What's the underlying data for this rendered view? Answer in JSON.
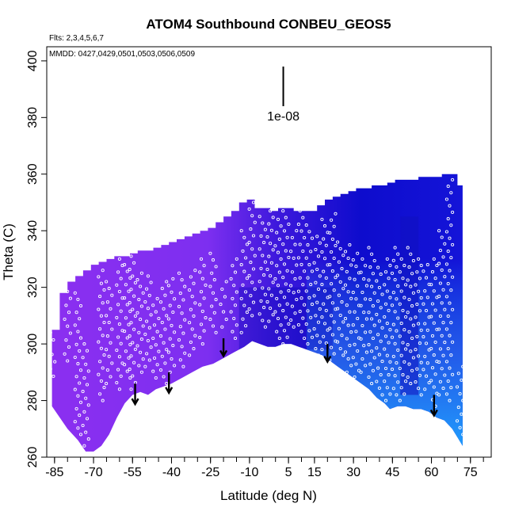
{
  "chart_data": {
    "type": "heatmap",
    "title": "ATOM4 Southbound CONBEU_GEOS5",
    "flights_note": "Flts: 2,3,4,5,6,7",
    "mmdd_note": "MMDD: 0427,0429,0501,0503,0506,0509",
    "xlabel": "Latitude (deg N)",
    "ylabel": "Theta (C)",
    "xlim": [
      -88,
      83
    ],
    "ylim": [
      260,
      405
    ],
    "x_ticks": [
      -85,
      -70,
      -55,
      -40,
      -25,
      -10,
      5,
      15,
      30,
      45,
      60,
      75
    ],
    "x_tick_labels": [
      "-85",
      "-70",
      "-55",
      "-40",
      "-25",
      "-10",
      "5",
      "15",
      "30",
      "45",
      "60",
      "75"
    ],
    "y_ticks": [
      260,
      280,
      300,
      320,
      340,
      360,
      380,
      400
    ],
    "y_tick_labels": [
      "260",
      "280",
      "300",
      "320",
      "340",
      "360",
      "380",
      "400"
    ],
    "scale_bar": {
      "label": "1e-08",
      "x": 3,
      "y_bottom": 384,
      "y_top": 398
    },
    "colors": {
      "low": "#8b2ff0",
      "high": "#0a0ac8",
      "surface": "#1fa6ff",
      "marker_outline": "#ffffff",
      "arrow": "#000000"
    },
    "top_boundary": {
      "lat": [
        -86,
        -83,
        -80,
        -77,
        -74,
        -71,
        -68,
        -65,
        -62,
        -59,
        -56,
        -53,
        -50,
        -47,
        -44,
        -41,
        -38,
        -35,
        -32,
        -29,
        -26,
        -23,
        -20,
        -17,
        -14,
        -11,
        -8,
        -5,
        -2,
        1,
        4,
        7,
        10,
        13,
        16,
        19,
        22,
        25,
        28,
        31,
        34,
        37,
        40,
        43,
        46,
        49,
        52,
        55,
        58,
        61,
        64,
        67,
        70,
        72
      ],
      "theta": [
        305,
        318,
        322,
        324,
        326,
        328,
        329,
        330,
        331,
        331,
        332,
        333,
        333,
        334,
        335,
        336,
        337,
        338,
        339,
        340,
        341,
        343,
        345,
        347,
        350,
        351,
        348,
        348,
        347,
        348,
        348,
        347,
        347,
        347,
        349,
        351,
        352,
        353,
        354,
        355,
        355,
        356,
        356,
        357,
        358,
        358,
        358,
        359,
        359,
        359,
        360,
        360,
        356,
        352
      ]
    },
    "bottom_boundary": {
      "lat": [
        -86,
        -80,
        -76,
        -73,
        -70,
        -67,
        -64,
        -61,
        -58,
        -55,
        -52,
        -49,
        -46,
        -43,
        -40,
        -36,
        -32,
        -28,
        -24,
        -20,
        -16,
        -12,
        -9,
        -6,
        -3,
        0,
        3,
        6,
        9,
        12,
        15,
        18,
        21,
        24,
        27,
        30,
        33,
        36,
        39,
        42,
        44,
        47,
        50,
        53,
        56,
        59,
        62,
        65,
        68,
        70,
        72
      ],
      "theta": [
        278,
        270,
        266,
        262,
        262,
        264,
        268,
        274,
        279,
        282,
        283,
        282,
        284,
        285,
        286,
        288,
        290,
        292,
        293,
        295,
        297,
        299,
        301,
        300,
        299,
        299,
        300,
        300,
        299,
        298,
        297,
        296,
        294,
        292,
        290,
        288,
        286,
        284,
        281,
        279,
        277,
        278,
        278,
        277,
        277,
        276,
        274,
        273,
        270,
        267,
        264
      ]
    },
    "descent_arrows": [
      {
        "lat": -54,
        "theta_top": 286,
        "theta_bottom": 279
      },
      {
        "lat": -41,
        "theta_top": 290,
        "theta_bottom": 283
      },
      {
        "lat": -20,
        "theta_top": 302,
        "theta_bottom": 296
      },
      {
        "lat": 20,
        "theta_top": 300,
        "theta_bottom": 294
      },
      {
        "lat": 61,
        "theta_top": 282,
        "theta_bottom": 275
      }
    ],
    "profiles": [
      {
        "lat": -86,
        "theta_min": 286,
        "theta_max": 304
      },
      {
        "lat": -80,
        "theta_min": 294,
        "theta_max": 321
      },
      {
        "lat": -76,
        "theta_min": 268,
        "theta_max": 318
      },
      {
        "lat": -73,
        "theta_min": 264,
        "theta_max": 300
      },
      {
        "lat": -67,
        "theta_min": 280,
        "theta_max": 326
      },
      {
        "lat": -64,
        "theta_min": 286,
        "theta_max": 322
      },
      {
        "lat": -60,
        "theta_min": 284,
        "theta_max": 330
      },
      {
        "lat": -57,
        "theta_min": 288,
        "theta_max": 328
      },
      {
        "lat": -55,
        "theta_min": 284,
        "theta_max": 331
      },
      {
        "lat": -52,
        "theta_min": 290,
        "theta_max": 325
      },
      {
        "lat": -49,
        "theta_min": 292,
        "theta_max": 324
      },
      {
        "lat": -46,
        "theta_min": 288,
        "theta_max": 316
      },
      {
        "lat": -43,
        "theta_min": 286,
        "theta_max": 322
      },
      {
        "lat": -40,
        "theta_min": 290,
        "theta_max": 323
      },
      {
        "lat": -36,
        "theta_min": 292,
        "theta_max": 325
      },
      {
        "lat": -32,
        "theta_min": 296,
        "theta_max": 326
      },
      {
        "lat": -28,
        "theta_min": 300,
        "theta_max": 330
      },
      {
        "lat": -24,
        "theta_min": 304,
        "theta_max": 332
      },
      {
        "lat": -20,
        "theta_min": 306,
        "theta_max": 322
      },
      {
        "lat": -16,
        "theta_min": 302,
        "theta_max": 330
      },
      {
        "lat": -12,
        "theta_min": 304,
        "theta_max": 340
      },
      {
        "lat": -9,
        "theta_min": 310,
        "theta_max": 350
      },
      {
        "lat": -5,
        "theta_min": 306,
        "theta_max": 345
      },
      {
        "lat": -2,
        "theta_min": 308,
        "theta_max": 347
      },
      {
        "lat": 1,
        "theta_min": 302,
        "theta_max": 344
      },
      {
        "lat": 4,
        "theta_min": 300,
        "theta_max": 347
      },
      {
        "lat": 7,
        "theta_min": 306,
        "theta_max": 340
      },
      {
        "lat": 10,
        "theta_min": 302,
        "theta_max": 347
      },
      {
        "lat": 13,
        "theta_min": 300,
        "theta_max": 342
      },
      {
        "lat": 16,
        "theta_min": 296,
        "theta_max": 338
      },
      {
        "lat": 19,
        "theta_min": 298,
        "theta_max": 344
      },
      {
        "lat": 22,
        "theta_min": 292,
        "theta_max": 346
      },
      {
        "lat": 25,
        "theta_min": 296,
        "theta_max": 336
      },
      {
        "lat": 28,
        "theta_min": 290,
        "theta_max": 335
      },
      {
        "lat": 31,
        "theta_min": 286,
        "theta_max": 332
      },
      {
        "lat": 34,
        "theta_min": 290,
        "theta_max": 330
      },
      {
        "lat": 37,
        "theta_min": 286,
        "theta_max": 334
      },
      {
        "lat": 40,
        "theta_min": 282,
        "theta_max": 327
      },
      {
        "lat": 43,
        "theta_min": 280,
        "theta_max": 330
      },
      {
        "lat": 46,
        "theta_min": 282,
        "theta_max": 334
      },
      {
        "lat": 49,
        "theta_min": 280,
        "theta_max": 330
      },
      {
        "lat": 52,
        "theta_min": 286,
        "theta_max": 334
      },
      {
        "lat": 55,
        "theta_min": 282,
        "theta_max": 330
      },
      {
        "lat": 58,
        "theta_min": 284,
        "theta_max": 328
      },
      {
        "lat": 61,
        "theta_min": 278,
        "theta_max": 330
      },
      {
        "lat": 64,
        "theta_min": 282,
        "theta_max": 340
      },
      {
        "lat": 67,
        "theta_min": 280,
        "theta_max": 358
      },
      {
        "lat": 71,
        "theta_min": 268,
        "theta_max": 292
      }
    ]
  }
}
